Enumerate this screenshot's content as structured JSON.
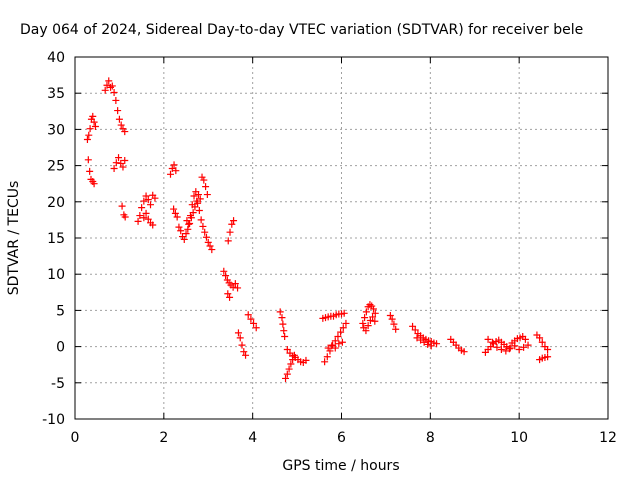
{
  "chart_data": {
    "type": "scatter",
    "title": "Day 064 of 2024, Sidereal Day-to-day VTEC variation (SDTVAR) for receiver bele",
    "xlabel": "GPS time / hours",
    "ylabel": "SDTVAR / TECUs",
    "xlim": [
      0,
      12
    ],
    "ylim": [
      -10,
      40
    ],
    "xticks": [
      "0",
      "2",
      "4",
      "6",
      "8",
      "10",
      "12"
    ],
    "yticks": [
      "-10",
      "-5",
      "0",
      "5",
      "10",
      "15",
      "20",
      "25",
      "30",
      "35",
      "40"
    ],
    "grid": true,
    "marker": "+",
    "marker_color": "#ff0000",
    "series": [
      {
        "name": "SDTVAR",
        "points": [
          [
            0.28,
            28.6
          ],
          [
            0.31,
            29.2
          ],
          [
            0.34,
            30.1
          ],
          [
            0.37,
            31.4
          ],
          [
            0.4,
            31.8
          ],
          [
            0.43,
            31.0
          ],
          [
            0.46,
            30.4
          ],
          [
            0.3,
            25.8
          ],
          [
            0.33,
            24.2
          ],
          [
            0.36,
            23.1
          ],
          [
            0.4,
            22.8
          ],
          [
            0.43,
            22.5
          ],
          [
            0.68,
            35.4
          ],
          [
            0.72,
            36.1
          ],
          [
            0.76,
            36.7
          ],
          [
            0.8,
            35.8
          ],
          [
            0.84,
            36.0
          ],
          [
            0.88,
            35.1
          ],
          [
            0.92,
            34.0
          ],
          [
            0.96,
            32.6
          ],
          [
            1.0,
            31.4
          ],
          [
            1.04,
            30.6
          ],
          [
            1.08,
            30.1
          ],
          [
            1.12,
            29.7
          ],
          [
            0.88,
            24.6
          ],
          [
            0.93,
            25.4
          ],
          [
            0.98,
            26.1
          ],
          [
            1.03,
            25.3
          ],
          [
            1.08,
            24.8
          ],
          [
            1.12,
            25.7
          ],
          [
            1.06,
            19.4
          ],
          [
            1.1,
            18.2
          ],
          [
            1.13,
            17.9
          ],
          [
            1.42,
            17.3
          ],
          [
            1.46,
            18.1
          ],
          [
            1.5,
            19.2
          ],
          [
            1.55,
            20.1
          ],
          [
            1.6,
            20.8
          ],
          [
            1.65,
            20.3
          ],
          [
            1.7,
            19.6
          ],
          [
            1.75,
            20.9
          ],
          [
            1.8,
            20.5
          ],
          [
            1.55,
            17.8
          ],
          [
            1.6,
            18.4
          ],
          [
            1.65,
            17.6
          ],
          [
            1.7,
            17.1
          ],
          [
            1.75,
            16.8
          ],
          [
            2.15,
            23.8
          ],
          [
            2.19,
            24.6
          ],
          [
            2.23,
            25.1
          ],
          [
            2.27,
            24.3
          ],
          [
            2.22,
            19.0
          ],
          [
            2.26,
            18.4
          ],
          [
            2.3,
            17.9
          ],
          [
            2.34,
            16.5
          ],
          [
            2.38,
            16.0
          ],
          [
            2.42,
            15.2
          ],
          [
            2.46,
            14.8
          ],
          [
            2.5,
            15.6
          ],
          [
            2.54,
            16.2
          ],
          [
            2.58,
            17.0
          ],
          [
            2.62,
            17.8
          ],
          [
            2.66,
            18.5
          ],
          [
            2.7,
            19.3
          ],
          [
            2.74,
            20.1
          ],
          [
            2.78,
            21.0
          ],
          [
            2.82,
            20.4
          ],
          [
            2.52,
            17.4
          ],
          [
            2.56,
            16.9
          ],
          [
            2.6,
            18.1
          ],
          [
            2.64,
            19.6
          ],
          [
            2.68,
            20.8
          ],
          [
            2.72,
            21.4
          ],
          [
            2.76,
            19.8
          ],
          [
            2.8,
            18.8
          ],
          [
            2.84,
            17.5
          ],
          [
            2.86,
            23.4
          ],
          [
            2.9,
            23.0
          ],
          [
            2.94,
            22.1
          ],
          [
            2.98,
            21.0
          ],
          [
            2.88,
            16.6
          ],
          [
            2.92,
            15.8
          ],
          [
            2.96,
            15.1
          ],
          [
            3.0,
            14.4
          ],
          [
            3.04,
            13.9
          ],
          [
            3.08,
            13.4
          ],
          [
            3.35,
            10.4
          ],
          [
            3.39,
            9.8
          ],
          [
            3.43,
            9.2
          ],
          [
            3.47,
            8.8
          ],
          [
            3.51,
            8.5
          ],
          [
            3.56,
            8.2
          ],
          [
            3.61,
            8.7
          ],
          [
            3.66,
            8.1
          ],
          [
            3.44,
            7.3
          ],
          [
            3.48,
            6.8
          ],
          [
            3.45,
            14.6
          ],
          [
            3.49,
            15.8
          ],
          [
            3.53,
            16.9
          ],
          [
            3.57,
            17.4
          ],
          [
            3.68,
            1.9
          ],
          [
            3.72,
            1.2
          ],
          [
            3.76,
            0.2
          ],
          [
            3.8,
            -0.7
          ],
          [
            3.84,
            -1.2
          ],
          [
            3.9,
            4.4
          ],
          [
            3.96,
            3.8
          ],
          [
            4.02,
            3.2
          ],
          [
            4.08,
            2.6
          ],
          [
            4.62,
            4.8
          ],
          [
            4.66,
            4.0
          ],
          [
            4.68,
            3.1
          ],
          [
            4.7,
            2.2
          ],
          [
            4.72,
            1.4
          ],
          [
            4.74,
            -4.4
          ],
          [
            4.78,
            -3.8
          ],
          [
            4.82,
            -3.1
          ],
          [
            4.86,
            -2.4
          ],
          [
            4.9,
            -1.8
          ],
          [
            4.94,
            -1.2
          ],
          [
            4.78,
            -0.4
          ],
          [
            4.84,
            -0.9
          ],
          [
            4.9,
            -1.3
          ],
          [
            4.96,
            -1.5
          ],
          [
            5.02,
            -1.8
          ],
          [
            5.08,
            -2.1
          ],
          [
            5.14,
            -2.2
          ],
          [
            5.2,
            -1.9
          ],
          [
            5.58,
            3.9
          ],
          [
            5.64,
            4.0
          ],
          [
            5.7,
            4.1
          ],
          [
            5.76,
            4.2
          ],
          [
            5.82,
            4.2
          ],
          [
            5.88,
            4.4
          ],
          [
            5.94,
            4.5
          ],
          [
            6.0,
            4.5
          ],
          [
            6.06,
            4.6
          ],
          [
            5.62,
            -2.1
          ],
          [
            5.68,
            -1.4
          ],
          [
            5.74,
            -0.6
          ],
          [
            5.8,
            0.2
          ],
          [
            5.86,
            0.8
          ],
          [
            5.92,
            1.4
          ],
          [
            5.98,
            2.0
          ],
          [
            6.04,
            2.6
          ],
          [
            6.1,
            3.2
          ],
          [
            5.7,
            -0.2
          ],
          [
            5.78,
            0.1
          ],
          [
            5.86,
            -0.2
          ],
          [
            5.94,
            0.4
          ],
          [
            6.02,
            0.6
          ],
          [
            6.48,
            3.2
          ],
          [
            6.52,
            4.0
          ],
          [
            6.56,
            4.8
          ],
          [
            6.6,
            5.5
          ],
          [
            6.64,
            5.8
          ],
          [
            6.68,
            5.6
          ],
          [
            6.72,
            5.2
          ],
          [
            6.76,
            4.6
          ],
          [
            6.5,
            2.6
          ],
          [
            6.55,
            2.2
          ],
          [
            6.6,
            2.9
          ],
          [
            6.65,
            3.6
          ],
          [
            6.7,
            4.1
          ],
          [
            6.75,
            3.5
          ],
          [
            7.1,
            4.3
          ],
          [
            7.14,
            3.8
          ],
          [
            7.18,
            3.1
          ],
          [
            7.22,
            2.4
          ],
          [
            7.6,
            2.8
          ],
          [
            7.66,
            2.3
          ],
          [
            7.72,
            1.8
          ],
          [
            7.78,
            1.5
          ],
          [
            7.84,
            1.2
          ],
          [
            7.9,
            1.0
          ],
          [
            7.96,
            0.8
          ],
          [
            8.02,
            0.7
          ],
          [
            8.08,
            0.5
          ],
          [
            8.14,
            0.4
          ],
          [
            7.7,
            1.2
          ],
          [
            7.78,
            0.9
          ],
          [
            7.86,
            0.6
          ],
          [
            7.94,
            0.3
          ],
          [
            8.02,
            0.1
          ],
          [
            8.46,
            1.0
          ],
          [
            8.52,
            0.6
          ],
          [
            8.58,
            0.2
          ],
          [
            8.64,
            -0.2
          ],
          [
            8.7,
            -0.5
          ],
          [
            8.76,
            -0.7
          ],
          [
            9.24,
            -0.8
          ],
          [
            9.3,
            -0.4
          ],
          [
            9.36,
            0.0
          ],
          [
            9.42,
            0.4
          ],
          [
            9.48,
            0.7
          ],
          [
            9.54,
            0.9
          ],
          [
            9.6,
            0.6
          ],
          [
            9.66,
            0.3
          ],
          [
            9.72,
            0.0
          ],
          [
            9.78,
            -0.3
          ],
          [
            9.84,
            0.5
          ],
          [
            9.9,
            0.8
          ],
          [
            9.96,
            1.1
          ],
          [
            10.02,
            1.2
          ],
          [
            10.08,
            1.4
          ],
          [
            10.14,
            1.0
          ],
          [
            9.3,
            1.0
          ],
          [
            9.4,
            0.6
          ],
          [
            9.5,
            -0.1
          ],
          [
            9.6,
            -0.4
          ],
          [
            9.7,
            -0.6
          ],
          [
            9.8,
            -0.2
          ],
          [
            9.9,
            0.1
          ],
          [
            10.0,
            -0.4
          ],
          [
            10.1,
            -0.1
          ],
          [
            10.2,
            0.2
          ],
          [
            10.4,
            1.6
          ],
          [
            10.46,
            1.2
          ],
          [
            10.52,
            0.6
          ],
          [
            10.58,
            0.0
          ],
          [
            10.64,
            -0.4
          ],
          [
            10.46,
            -1.8
          ],
          [
            10.52,
            -1.6
          ],
          [
            10.58,
            -1.5
          ],
          [
            10.64,
            -1.4
          ]
        ]
      }
    ]
  }
}
